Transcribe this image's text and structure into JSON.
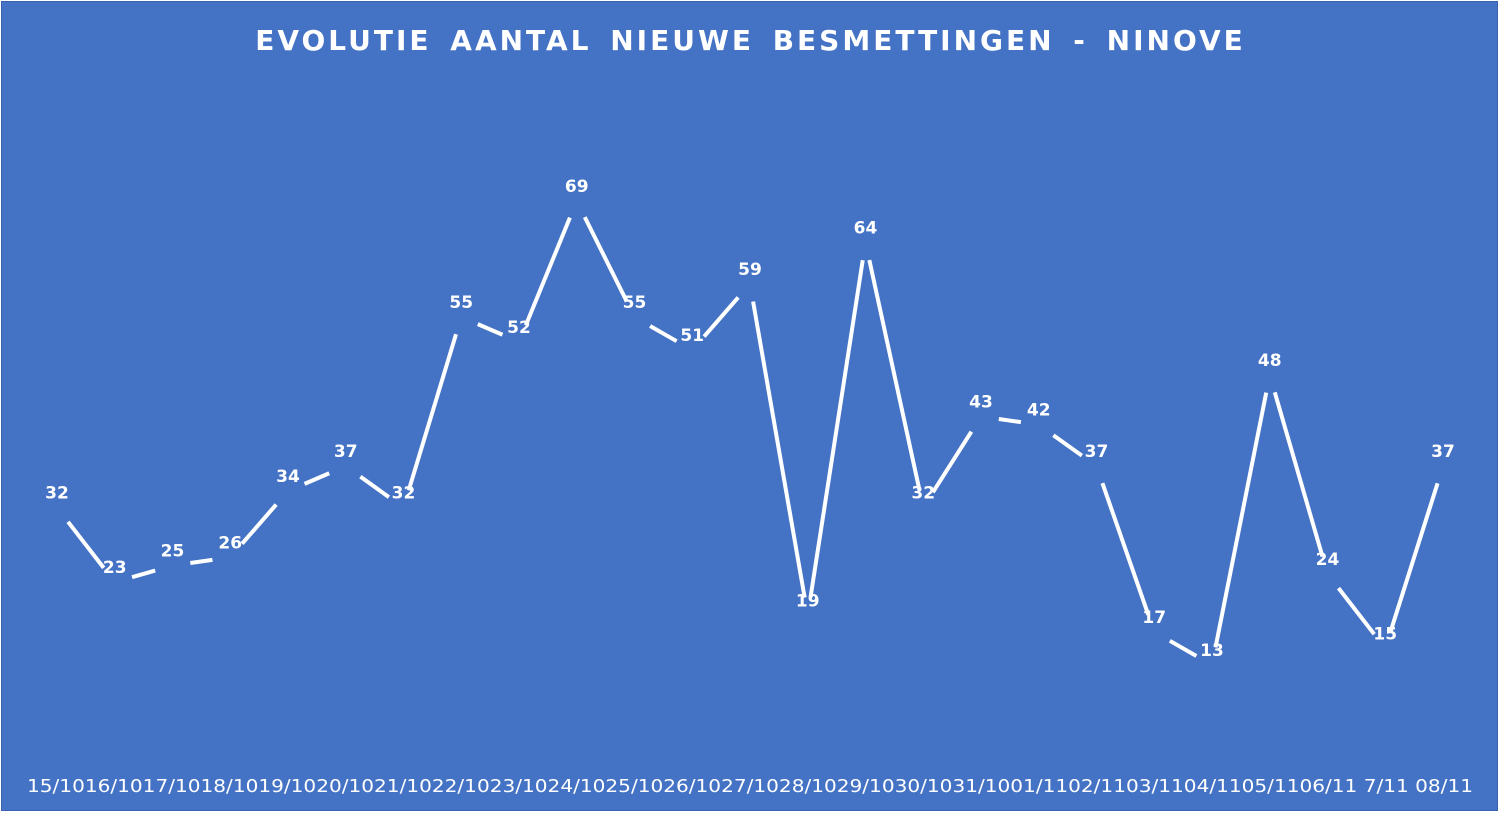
{
  "chart_data": {
    "type": "line",
    "title": "EVOLUTIE  AANTAL NIEUWE  BESMETTINGEN  - NINOVE",
    "categories": [
      "15/10",
      "16/10",
      "17/10",
      "18/10",
      "19/10",
      "20/10",
      "21/10",
      "22/10",
      "23/10",
      "24/10",
      "25/10",
      "26/10",
      "27/10",
      "28/10",
      "29/10",
      "30/10",
      "31/10",
      "01/11",
      "02/11",
      "03/11",
      "04/11",
      "05/11",
      "06/11",
      "7/11",
      "08/11"
    ],
    "tick_labels_row": "15/1016/1017/1018/1019/1020/1021/1022/1023/1024/1025/1026/1027/1028/1029/1030/1031/1001/1102/1103/1104/1105/1106/11 7/11 08/11",
    "values": [
      32,
      23,
      25,
      26,
      34,
      37,
      32,
      55,
      52,
      69,
      55,
      51,
      59,
      19,
      64,
      32,
      43,
      42,
      37,
      17,
      13,
      48,
      24,
      15,
      37
    ],
    "data_labels": true,
    "drop_lines": true,
    "grid": false,
    "legend": "none",
    "ylim": [
      0,
      69
    ],
    "colors": {
      "background": "#4472C4",
      "line": "#ffffff",
      "text": "#ffffff"
    }
  }
}
